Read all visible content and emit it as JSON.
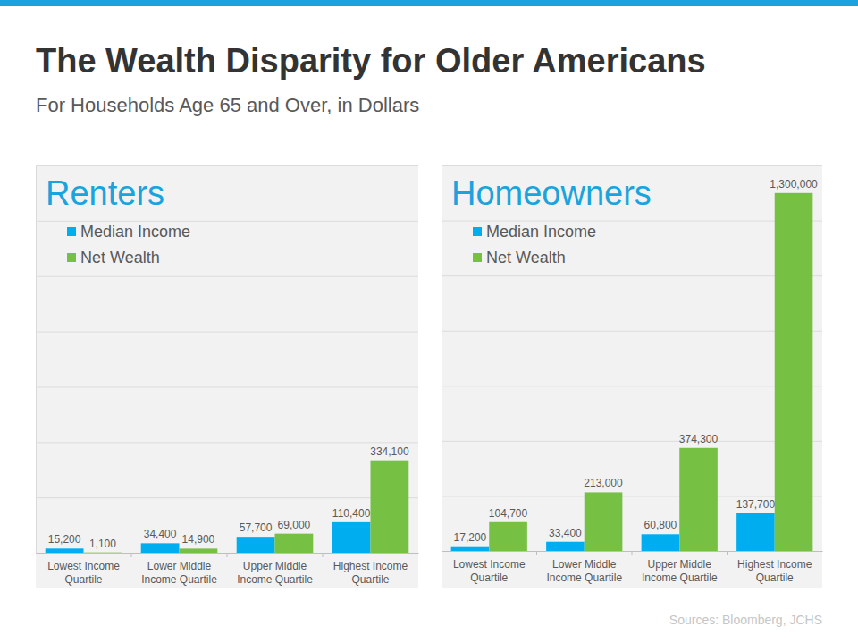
{
  "title": "The Wealth Disparity for Older Americans",
  "subtitle": "For Households Age 65 and Over, in Dollars",
  "source": "Sources: Bloomberg, JCHS",
  "chart_data": [
    {
      "type": "bar",
      "title": "Renters",
      "categories": [
        "Lowest Income\nQuartile",
        "Lower Middle\nIncome Quartile",
        "Upper Middle\nIncome Quartile",
        "Highest Income\nQuartile"
      ],
      "series": [
        {
          "name": "Median Income",
          "color": "#00aeef",
          "values": [
            15200,
            34400,
            57700,
            110400
          ],
          "value_labels": [
            "15,200",
            "34,400",
            "57,700",
            "110,400"
          ]
        },
        {
          "name": "Net Wealth",
          "color": "#76c043",
          "values": [
            1100,
            14900,
            69000,
            334100
          ],
          "value_labels": [
            "1,100",
            "14,900",
            "69,000",
            "334,100"
          ]
        }
      ],
      "ylim": [
        0,
        1400000
      ],
      "yticks": [
        0,
        200000,
        400000,
        600000,
        800000,
        1000000,
        1200000,
        1400000
      ],
      "grid": true,
      "legend": "upper left",
      "data_labels": true,
      "tick_labels": "x"
    },
    {
      "type": "bar",
      "title": "Homeowners",
      "categories": [
        "Lowest Income\nQuartile",
        "Lower Middle\nIncome Quartile",
        "Upper Middle\nIncome Quartile",
        "Highest Income\nQuartile"
      ],
      "series": [
        {
          "name": "Median Income",
          "color": "#00aeef",
          "values": [
            17200,
            33400,
            60800,
            137700
          ],
          "value_labels": [
            "17,200",
            "33,400",
            "60,800",
            "137,700"
          ]
        },
        {
          "name": "Net Wealth",
          "color": "#76c043",
          "values": [
            104700,
            213000,
            374300,
            1300000
          ],
          "value_labels": [
            "104,700",
            "213,000",
            "374,300",
            "1,300,000"
          ]
        }
      ],
      "ylim": [
        0,
        1400000
      ],
      "yticks": [
        0,
        200000,
        400000,
        600000,
        800000,
        1000000,
        1200000,
        1400000
      ],
      "grid": true,
      "legend": "upper left",
      "data_labels": true,
      "tick_labels": "x"
    }
  ]
}
